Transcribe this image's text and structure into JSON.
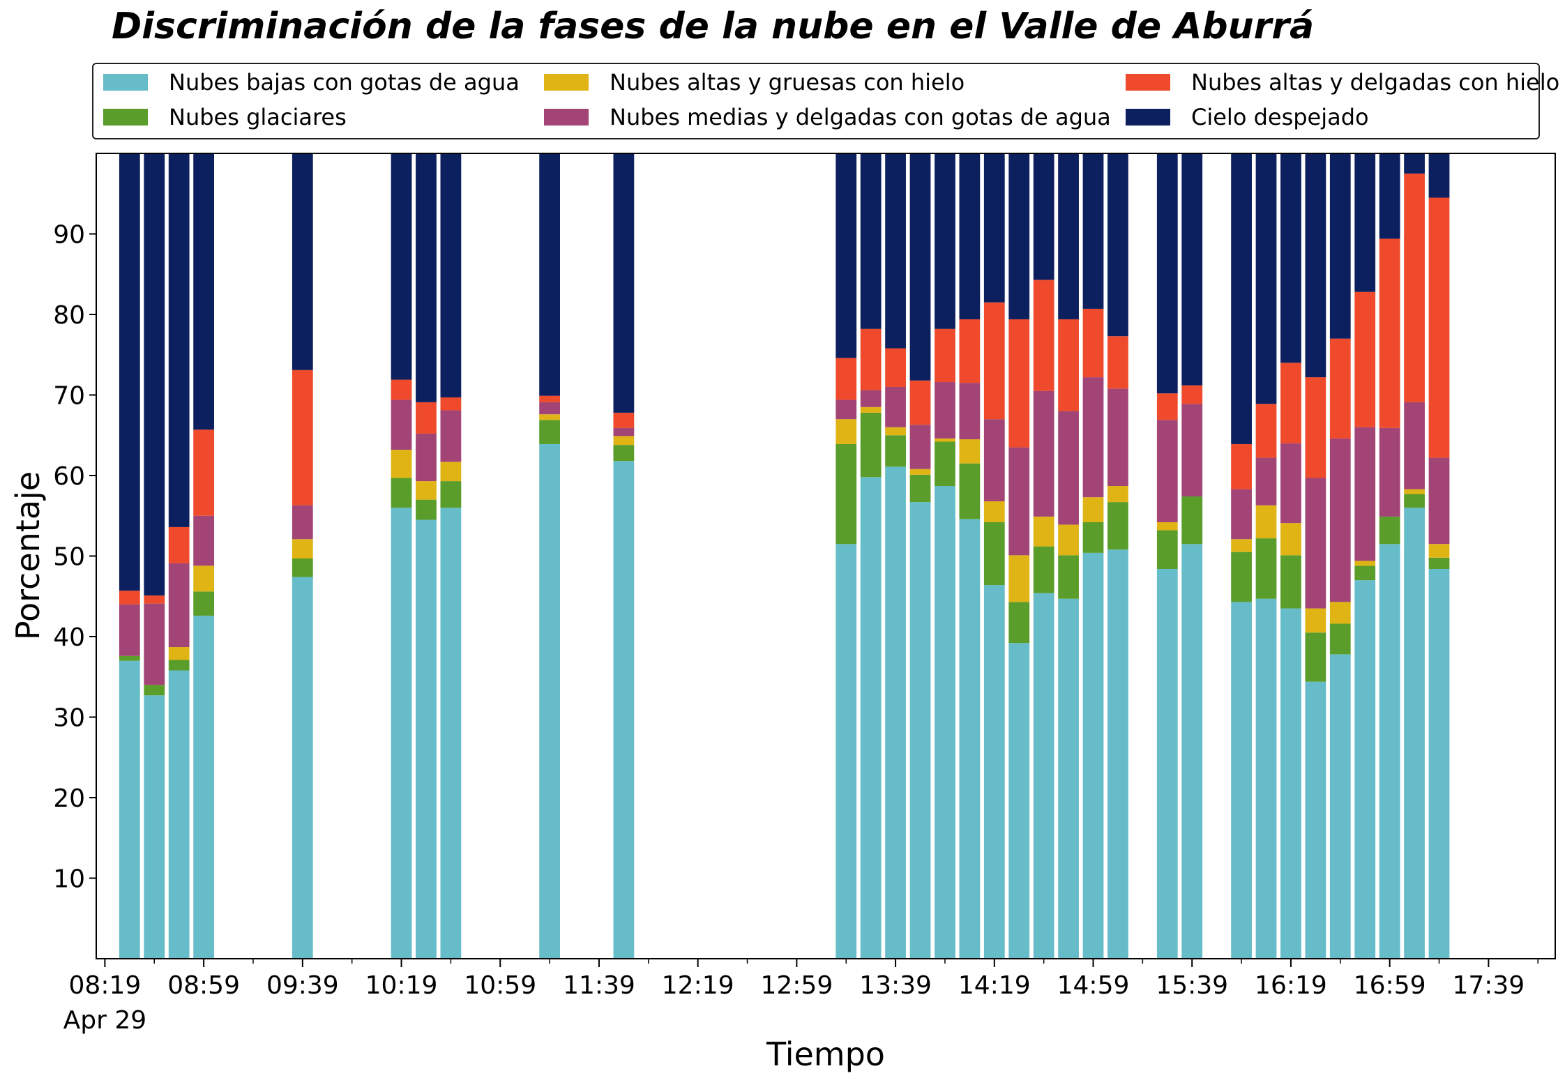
{
  "chart_data": {
    "type": "bar",
    "stacked": true,
    "title": "Discriminación de la fases de la nube en el Valle de Aburrá",
    "xlabel": "Tiempo",
    "ylabel": "Porcentaje",
    "ylim": [
      0,
      100
    ],
    "y_ticks": [
      10,
      20,
      30,
      40,
      50,
      60,
      70,
      80,
      90
    ],
    "x_ticks": [
      {
        "label": "08:19",
        "sublabel": "Apr 29",
        "minutes": 499
      },
      {
        "label": "08:59",
        "minutes": 539
      },
      {
        "label": "09:39",
        "minutes": 579
      },
      {
        "label": "10:19",
        "minutes": 619
      },
      {
        "label": "10:59",
        "minutes": 659
      },
      {
        "label": "11:39",
        "minutes": 699
      },
      {
        "label": "12:19",
        "minutes": 739
      },
      {
        "label": "12:59",
        "minutes": 779
      },
      {
        "label": "13:39",
        "minutes": 819
      },
      {
        "label": "14:19",
        "minutes": 859
      },
      {
        "label": "14:59",
        "minutes": 899
      },
      {
        "label": "15:39",
        "minutes": 939
      },
      {
        "label": "16:19",
        "minutes": 979
      },
      {
        "label": "16:59",
        "minutes": 1019
      },
      {
        "label": "17:39",
        "minutes": 1059
      }
    ],
    "x_minor_minutes": [
      519,
      559,
      599,
      639,
      679,
      719,
      759,
      799,
      839,
      879,
      919,
      959,
      999,
      1039,
      1079
    ],
    "xlim_minutes": [
      495.5,
      1086
    ],
    "bar_width_minutes": 8.4,
    "grid": false,
    "legend_placement": "top",
    "categories": [
      "08:29",
      "08:39",
      "08:49",
      "09:19",
      "09:59",
      "10:39",
      "10:49",
      "10:59",
      "11:39",
      "12:09",
      "13:39",
      "13:49",
      "13:59",
      "14:09",
      "14:19",
      "14:29",
      "14:39",
      "14:49",
      "14:59",
      "15:09",
      "15:19",
      "15:29",
      "15:39",
      "15:49",
      "16:09",
      "16:19",
      "16:29",
      "16:39",
      "16:49",
      "16:59",
      "17:09",
      "17:19",
      "17:29"
    ],
    "x_minutes": [
      509,
      519,
      529,
      539,
      579,
      619,
      629,
      639,
      679,
      709,
      799,
      809,
      819,
      829,
      839,
      849,
      859,
      869,
      879,
      889,
      899,
      909,
      929,
      939,
      959,
      969,
      979,
      989,
      999,
      1009,
      1019,
      1029,
      1039
    ],
    "series": [
      {
        "name": "Nubes bajas con gotas de agua",
        "color": "#66bcc8",
        "values": [
          37.0,
          32.7,
          35.8,
          42.6,
          47.4,
          56.0,
          54.5,
          56.0,
          63.9,
          61.8,
          51.5,
          59.8,
          61.1,
          56.7,
          58.7,
          54.6,
          46.4,
          39.2,
          45.4,
          44.7,
          50.4,
          50.8,
          48.4,
          51.5,
          44.3,
          44.7,
          43.5,
          34.4,
          37.8,
          47.0,
          51.5,
          56.0,
          48.4
        ]
      },
      {
        "name": "Nubes glaciares",
        "color": "#5a9d2a",
        "values": [
          0.6,
          1.3,
          1.3,
          3.0,
          2.3,
          3.7,
          2.5,
          3.3,
          3.0,
          2.0,
          12.4,
          8.0,
          3.9,
          3.4,
          5.5,
          6.9,
          7.8,
          5.1,
          5.8,
          5.4,
          3.8,
          5.9,
          4.8,
          5.9,
          6.2,
          7.5,
          6.6,
          6.1,
          3.8,
          1.8,
          3.4,
          1.7,
          1.4
        ]
      },
      {
        "name": "Nubes altas y gruesas con hielo",
        "color": "#e0b415",
        "values": [
          0.0,
          0.0,
          1.6,
          3.2,
          2.4,
          3.5,
          2.3,
          2.4,
          0.7,
          1.1,
          3.1,
          0.7,
          1.0,
          0.7,
          0.4,
          3.0,
          2.6,
          5.8,
          3.7,
          3.8,
          3.1,
          2.0,
          1.0,
          0.0,
          1.6,
          4.1,
          4.0,
          3.0,
          2.7,
          0.6,
          0.0,
          0.6,
          1.7
        ]
      },
      {
        "name": "Nubes medias y delgadas con gotas de agua",
        "color": "#a24475",
        "values": [
          6.4,
          10.1,
          10.4,
          6.2,
          4.2,
          6.2,
          5.9,
          6.4,
          1.5,
          1.0,
          2.4,
          2.1,
          5.0,
          5.5,
          7.0,
          7.0,
          10.2,
          13.4,
          15.6,
          14.1,
          14.9,
          12.1,
          12.7,
          11.5,
          6.2,
          5.9,
          9.9,
          16.2,
          20.3,
          16.6,
          11.0,
          10.8,
          10.7
        ]
      },
      {
        "name": "Nubes altas y delgadas con hielo",
        "color": "#ee4a2b",
        "values": [
          1.7,
          1.0,
          4.5,
          10.7,
          16.8,
          2.5,
          3.9,
          1.6,
          0.8,
          1.9,
          5.2,
          7.6,
          4.8,
          5.5,
          6.6,
          7.9,
          14.5,
          15.9,
          13.8,
          11.4,
          8.5,
          6.5,
          3.3,
          2.3,
          5.6,
          6.7,
          10.0,
          12.5,
          12.4,
          16.8,
          23.5,
          28.4,
          32.3
        ]
      },
      {
        "name": "Cielo despejado",
        "color": "#0c1f5e",
        "values": [
          54.3,
          54.9,
          46.4,
          34.3,
          26.9,
          28.1,
          30.9,
          30.3,
          30.1,
          32.2,
          25.4,
          21.8,
          24.2,
          28.2,
          21.8,
          20.6,
          18.5,
          20.6,
          15.7,
          20.6,
          19.3,
          22.7,
          29.8,
          28.8,
          36.1,
          31.1,
          26.0,
          27.8,
          23.0,
          17.2,
          10.6,
          2.5,
          5.5
        ]
      }
    ]
  }
}
